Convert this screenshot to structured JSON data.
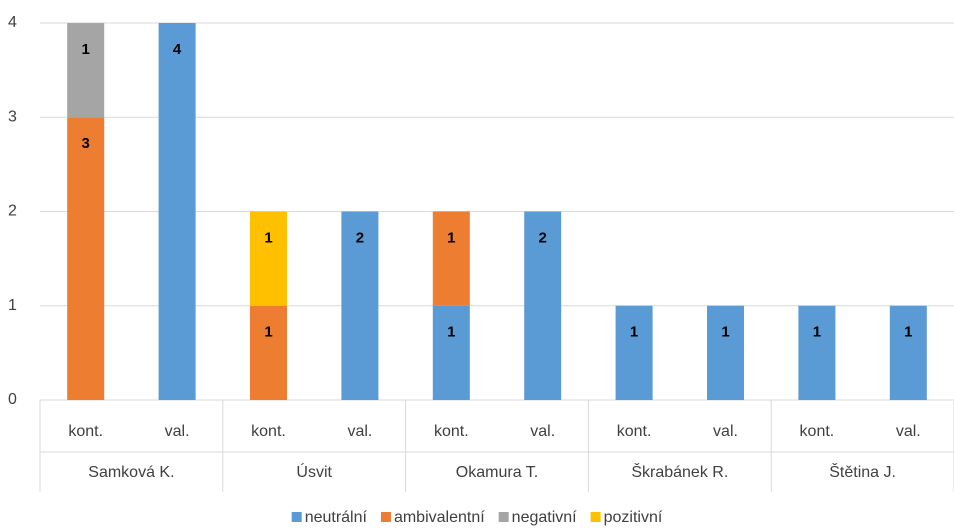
{
  "chart_data": {
    "type": "stacked-bar",
    "categories": [
      "kont.",
      "val.",
      "kont.",
      "val.",
      "kont.",
      "val.",
      "kont.",
      "val.",
      "kont.",
      "val."
    ],
    "groups": [
      "Samková K.",
      "Úsvit",
      "Okamura T.",
      "Škrabánek R.",
      "Štětina J."
    ],
    "series": [
      {
        "name": "neutrální",
        "color": "#5b9bd5",
        "values": [
          null,
          4,
          null,
          2,
          1,
          2,
          1,
          1,
          1,
          1
        ]
      },
      {
        "name": "ambivalentní",
        "color": "#ed7d31",
        "values": [
          3,
          null,
          1,
          null,
          1,
          null,
          null,
          null,
          null,
          null
        ]
      },
      {
        "name": "negativní",
        "color": "#a5a5a5",
        "values": [
          1,
          null,
          null,
          null,
          null,
          null,
          null,
          null,
          null,
          null
        ]
      },
      {
        "name": "pozitivní",
        "color": "#ffc000",
        "values": [
          null,
          null,
          1,
          null,
          null,
          null,
          null,
          null,
          null,
          null
        ]
      }
    ],
    "ylim": [
      0,
      4
    ],
    "yticks": [
      0,
      1,
      2,
      3,
      4
    ],
    "grid": true,
    "legend": "bottom"
  }
}
